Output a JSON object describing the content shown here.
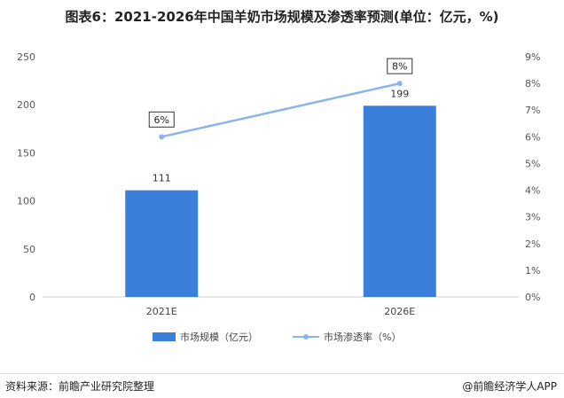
{
  "title": "图表6：2021-2026年中国羊奶市场规模及渗透率预测(单位：亿元，%)",
  "footer": {
    "source": "资料来源：前瞻产业研究院整理",
    "brand": "@前瞻经济学人APP"
  },
  "chart_data": {
    "type": "bar",
    "categories": [
      "2021E",
      "2026E"
    ],
    "series": [
      {
        "name": "市场规模（亿元）",
        "type": "bar",
        "axis": "left",
        "values": [
          111,
          199
        ],
        "color": "#3a7fdb"
      },
      {
        "name": "市场渗透率（%）",
        "type": "line",
        "axis": "right",
        "values": [
          6,
          8
        ],
        "color": "#8ab4ec"
      }
    ],
    "bar_labels": [
      "111",
      "199"
    ],
    "line_labels": [
      "6%",
      "8%"
    ],
    "y_left": {
      "range": [
        0,
        250
      ],
      "ticks": [
        "0",
        "50",
        "100",
        "150",
        "200",
        "250"
      ]
    },
    "y_right": {
      "range": [
        0,
        9
      ],
      "ticks": [
        "0%",
        "1%",
        "2%",
        "3%",
        "4%",
        "5%",
        "6%",
        "7%",
        "8%",
        "9%"
      ]
    },
    "grid": false,
    "legend": "bottom"
  }
}
